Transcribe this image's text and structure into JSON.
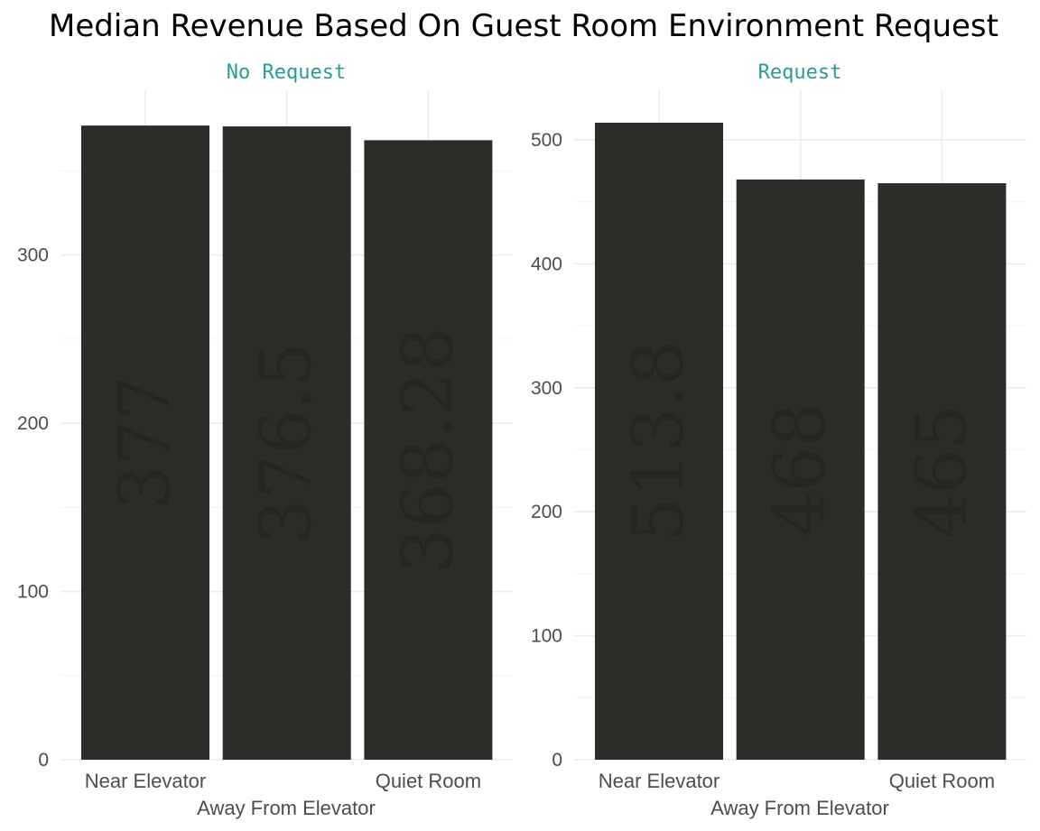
{
  "chart_data": {
    "type": "bar",
    "title": "Median Revenue Based On Guest Room Environment Request",
    "xlabel": "Away From Elevator",
    "ylabel": "",
    "grid": true,
    "categories": [
      "Near Elevator",
      "Away From Elevator",
      "Quiet Room"
    ],
    "x_tick_labels": [
      "Near Elevator",
      "",
      "Quiet Room"
    ],
    "colors": {
      "bar": "#2c2c28",
      "bar_label": "#252521",
      "strip_text": "#2a9d8f",
      "grid_major": "#ebebeb",
      "grid_minor": "#f5f5f5",
      "tick_text": "#4d4d4d"
    },
    "panels": [
      {
        "name": "No Request",
        "values": [
          377,
          376.5,
          368.28
        ],
        "labels": [
          "377",
          "376.5",
          "368.28"
        ],
        "ylim": [
          0,
          398
        ],
        "yticks": [
          0,
          100,
          200,
          300
        ]
      },
      {
        "name": "Request",
        "values": [
          513.8,
          468,
          465
        ],
        "labels": [
          "513.8",
          "468",
          "465"
        ],
        "ylim": [
          0,
          540
        ],
        "yticks": [
          0,
          100,
          200,
          300,
          400,
          500
        ]
      }
    ]
  }
}
